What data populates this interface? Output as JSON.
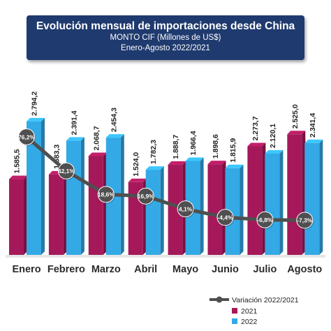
{
  "header": {
    "title": "Evolución mensual de importaciones desde China",
    "subtitle": "MONTO CIF (Millones de US$)",
    "period": "Enero-Agosto 2022/2021"
  },
  "colors": {
    "series_2021": "#a5195a",
    "series_2022": "#33a9e6",
    "variation_line": "#4f4f4f",
    "header_bg": "#1f3a6e"
  },
  "chart_data": {
    "type": "bar",
    "categories": [
      "Enero",
      "Febrero",
      "Marzo",
      "Abril",
      "Mayo",
      "Junio",
      "Julio",
      "Agosto"
    ],
    "series": [
      {
        "name": "2021",
        "values": [
          1585.5,
          1683.3,
          2068.7,
          1524.0,
          1888.7,
          1898.6,
          2273.7,
          2525.0
        ],
        "labels": [
          "1.585,5",
          "1.683,3",
          "2.068,7",
          "1.524,0",
          "1.888,7",
          "1.898,6",
          "2.273,7",
          "2.525,0"
        ]
      },
      {
        "name": "2022",
        "values": [
          2794.2,
          2391.4,
          2454.3,
          1782.3,
          1966.4,
          1815.9,
          2120.1,
          2341.4
        ],
        "labels": [
          "2.794,2",
          "2.391,4",
          "2.454,3",
          "1.782,3",
          "1.966,4",
          "1.815,9",
          "2.120,1",
          "2.341,4"
        ]
      }
    ],
    "line_series": {
      "name": "Variación 2022/2021",
      "values": [
        76.2,
        42.1,
        18.6,
        16.9,
        4.1,
        -4.4,
        -6.8,
        -7.3
      ],
      "labels": [
        "76,2%",
        "42,1%",
        "18,6%",
        "16,9%",
        "4,1%",
        "-4,4%",
        "-6,8%",
        "-7,3%"
      ]
    },
    "legend": [
      {
        "label": "Variación 2022/2021",
        "kind": "line"
      },
      {
        "label": "2021",
        "kind": "bar"
      },
      {
        "label": "2022",
        "kind": "bar"
      }
    ],
    "legend_position": "bottom-right"
  }
}
